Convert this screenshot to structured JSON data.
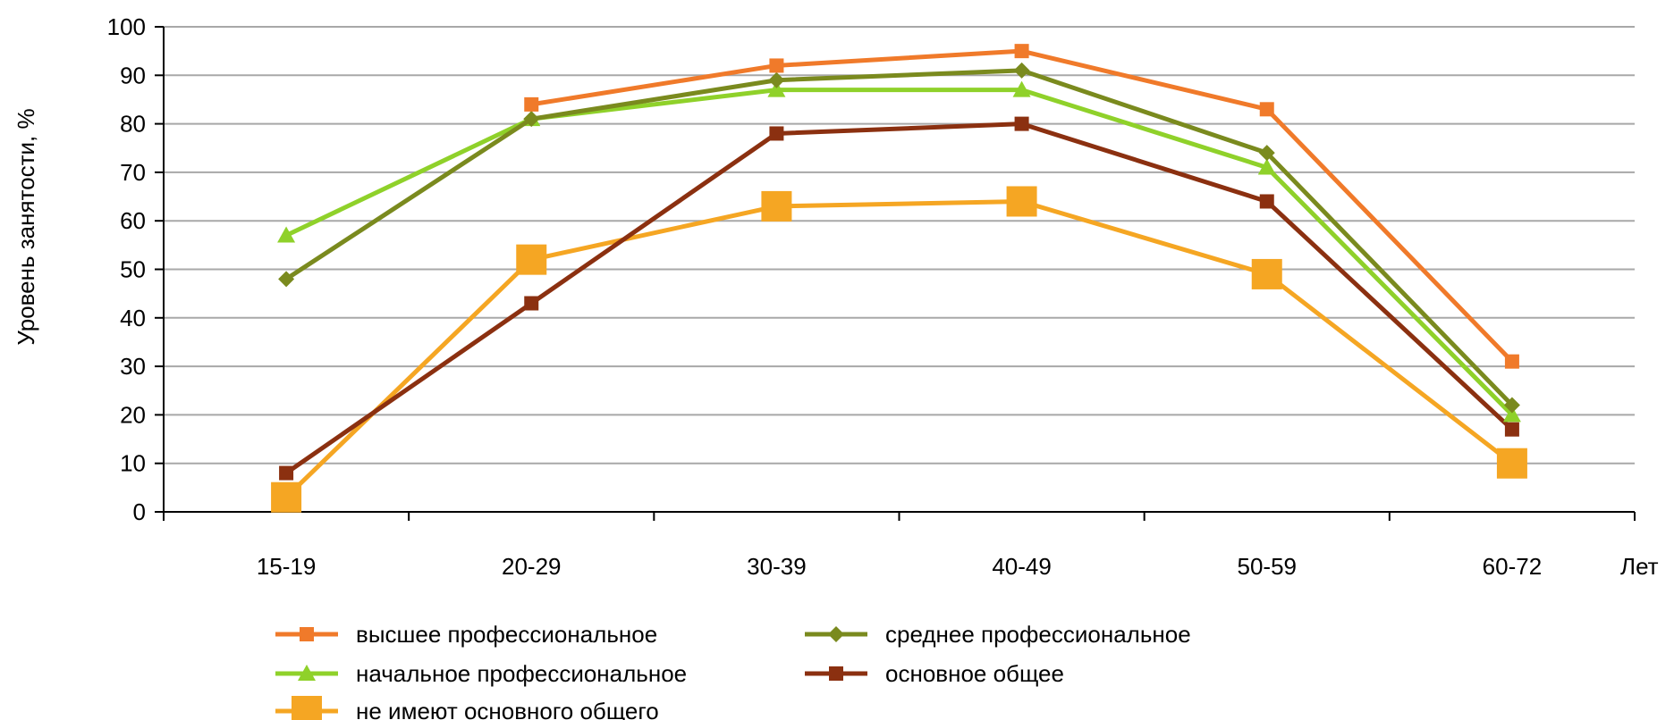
{
  "chart_data": {
    "type": "line",
    "title": "",
    "xlabel": "Лет",
    "ylabel": "Уровень занятости, %",
    "ylim": [
      0,
      100
    ],
    "yticks": [
      0,
      10,
      20,
      30,
      40,
      50,
      60,
      70,
      80,
      90,
      100
    ],
    "grid": true,
    "legend_position": "bottom",
    "categories": [
      "15-19",
      "20-29",
      "30-39",
      "40-49",
      "50-59",
      "60-72"
    ],
    "series": [
      {
        "name": "высшее профессиональное",
        "color": "#f07a2a",
        "marker": "square-small",
        "values": [
          null,
          84,
          92,
          95,
          83,
          31
        ]
      },
      {
        "name": "среднее профессиональное",
        "color": "#7a8a1e",
        "marker": "diamond",
        "values": [
          48,
          81,
          89,
          91,
          74,
          22
        ]
      },
      {
        "name": "начальное профессиональное",
        "color": "#8fd12a",
        "marker": "triangle",
        "values": [
          57,
          81,
          87,
          87,
          71,
          20
        ]
      },
      {
        "name": "основное общее",
        "color": "#8b3010",
        "marker": "square-small",
        "values": [
          8,
          43,
          78,
          80,
          64,
          17
        ]
      },
      {
        "name": "не имеют основного общего",
        "color": "#f5a623",
        "marker": "square-large",
        "values": [
          3,
          52,
          63,
          64,
          49,
          10
        ]
      }
    ]
  }
}
